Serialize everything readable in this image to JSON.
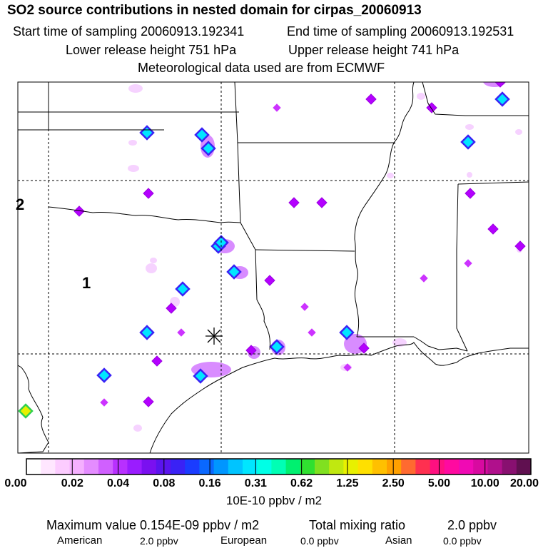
{
  "header": {
    "title": "SO2 source contributions in nested domain for cirpas_20060913",
    "start_label": "Start time of sampling 20060913.192341",
    "end_label": "End time of sampling 20060913.192531",
    "lower_label": "Lower release height  751 hPa",
    "upper_label": "Upper release height  741 hPa",
    "met_label": "Meteorological data used are from ECMWF"
  },
  "map": {
    "region_labels": [
      "1",
      "2"
    ],
    "colors": {
      "land_outline": "#000000",
      "grid": "#000000"
    }
  },
  "colorbar": {
    "tick_labels": [
      "0.00",
      "0.02",
      "0.04",
      "0.08",
      "0.16",
      "0.31",
      "0.62",
      "1.25",
      "2.50",
      "5.00",
      "10.00",
      "20.00"
    ],
    "unit": "10E-10 ppbv / m2",
    "colors": [
      "#ffffff",
      "#ffe6ff",
      "#fcccff",
      "#f5b0ff",
      "#e48cff",
      "#d060ff",
      "#b830ff",
      "#9a1cff",
      "#7a10f0",
      "#5a14ee",
      "#3a22f5",
      "#1a3cff",
      "#0a68ff",
      "#0096ff",
      "#00c4ff",
      "#00e6ff",
      "#00ffe6",
      "#00ffb4",
      "#00f070",
      "#30e030",
      "#80e020",
      "#c0e810",
      "#e8f000",
      "#ffe000",
      "#ffc000",
      "#ffa000",
      "#ff6a30",
      "#ff3050",
      "#ff1080",
      "#ff0aa0",
      "#f00ab4",
      "#d80aa0",
      "#b0108c",
      "#881070",
      "#601050"
    ]
  },
  "footer": {
    "max_label": "Maximum value  0.154E-09 ppbv / m2",
    "total_label": "Total mixing ratio",
    "total_value": "2.0 ppbv",
    "american_label": "American",
    "american_value": "2.0 ppbv",
    "european_label": "European",
    "european_value": "0.0 ppbv",
    "asian_label": "Asian",
    "asian_value": "0.0 ppbv"
  }
}
